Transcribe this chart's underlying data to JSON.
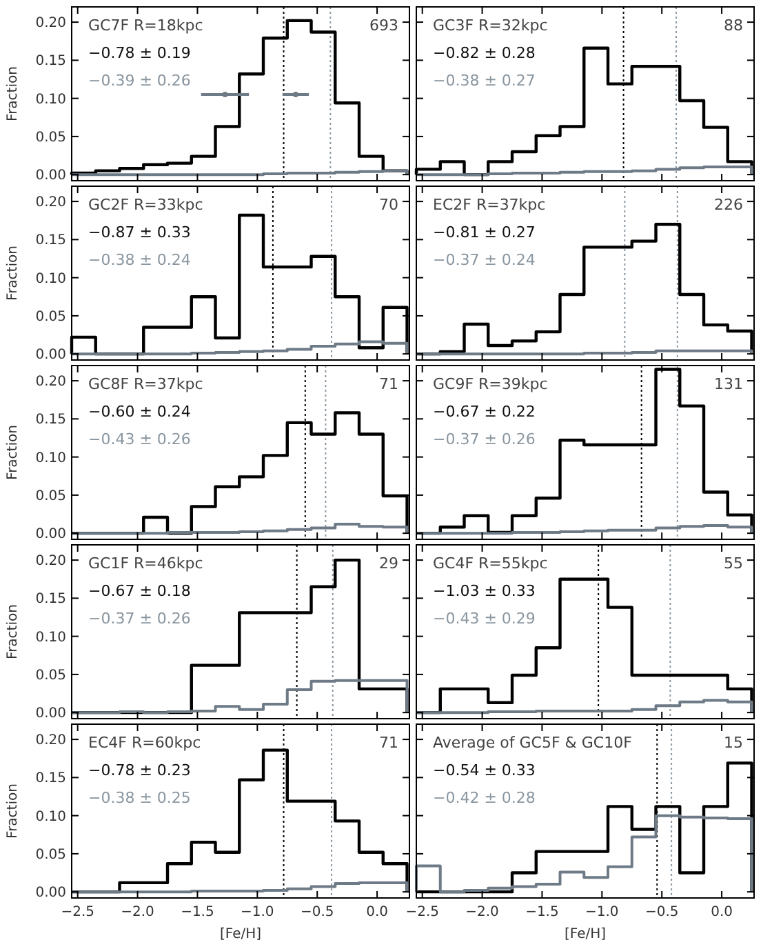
{
  "chart_data": [
    {
      "type": "histogram",
      "ylabel": "Fraction",
      "tick_labels": "y",
      "annotations": [
        "GC7F   R=18kpc",
        "693",
        "−0.78 ± 0.19",
        "−0.39 ± 0.26"
      ],
      "bins": [
        -2.55,
        -2.35,
        -2.15,
        -1.95,
        -1.75,
        -1.55,
        -1.35,
        -1.15,
        -0.95,
        -0.75,
        -0.55,
        -0.35,
        -0.15,
        0.05,
        0.25
      ],
      "xlim": [
        -2.55,
        0.27
      ],
      "ylim": [
        -0.008,
        0.22
      ],
      "xticks": [
        {
          "value": -2.5,
          "label": null
        },
        {
          "value": -2,
          "label": null
        },
        {
          "value": -1.5,
          "label": null
        },
        {
          "value": -1,
          "label": null
        },
        {
          "value": -0.5,
          "label": null
        },
        {
          "value": 0,
          "label": null
        }
      ],
      "yticks": [
        {
          "value": 0,
          "label": "0.00"
        },
        {
          "value": 0.05,
          "label": "0.05"
        },
        {
          "value": 0.1,
          "label": "0.10"
        },
        {
          "value": 0.15,
          "label": "0.15"
        },
        {
          "value": 0.2,
          "label": "0.20"
        }
      ],
      "ref_lines": [
        {
          "axis": "x",
          "value": -0.78,
          "color": "#000000",
          "line_style": "dotted"
        },
        {
          "axis": "x",
          "value": -0.39,
          "color": "#8a96a0",
          "line_style": "dotted"
        }
      ],
      "series": [
        {
          "color": "#000000",
          "values": [
            0.002,
            0.005,
            0.008,
            0.013,
            0.015,
            0.024,
            0.063,
            0.132,
            0.179,
            0.202,
            0.187,
            0.094,
            0.024,
            0.005
          ]
        },
        {
          "color": "#6e7b87",
          "values": [
            0,
            0,
            0,
            0,
            0,
            0,
            0,
            0,
            0.001,
            0.002,
            0.002,
            0.003,
            0.004,
            0.005
          ]
        },
        {
          "type": "scatter",
          "color": "#6e7b87",
          "marker": "circle",
          "x": [
            -1.27,
            -0.68
          ],
          "values": [
            0.105,
            0.105
          ],
          "xerrors": [
            0.2,
            0.11
          ]
        }
      ]
    },
    {
      "type": "histogram",
      "tick_labels": false,
      "annotations": [
        "GC3F   R=32kpc",
        "88",
        "−0.82 ± 0.28",
        "−0.38 ± 0.27"
      ],
      "bins": [
        -2.55,
        -2.35,
        -2.15,
        -1.95,
        -1.75,
        -1.55,
        -1.35,
        -1.15,
        -0.95,
        -0.75,
        -0.55,
        -0.35,
        -0.15,
        0.05,
        0.25
      ],
      "xlim": [
        -2.55,
        0.27
      ],
      "ylim": [
        -0.008,
        0.22
      ],
      "xticks": [
        {
          "value": -2.5,
          "label": null
        },
        {
          "value": -2,
          "label": null
        },
        {
          "value": -1.5,
          "label": null
        },
        {
          "value": -1,
          "label": null
        },
        {
          "value": -0.5,
          "label": null
        },
        {
          "value": 0,
          "label": null
        }
      ],
      "yticks": [
        {
          "value": 0,
          "label": null
        },
        {
          "value": 0.05,
          "label": null
        },
        {
          "value": 0.1,
          "label": null
        },
        {
          "value": 0.15,
          "label": null
        },
        {
          "value": 0.2,
          "label": null
        }
      ],
      "ref_lines": [
        {
          "axis": "x",
          "value": -0.82,
          "color": "#000000",
          "line_style": "dotted"
        },
        {
          "axis": "x",
          "value": -0.38,
          "color": "#8a96a0",
          "line_style": "dotted"
        }
      ],
      "series": [
        {
          "color": "#000000",
          "values": [
            0.007,
            0.017,
            0,
            0.017,
            0.03,
            0.051,
            0.063,
            0.166,
            0.119,
            0.142,
            0.142,
            0.097,
            0.062,
            0.017
          ]
        },
        {
          "color": "#6e7b87",
          "values": [
            0,
            0,
            0,
            0.001,
            0.002,
            0.002,
            0.003,
            0.004,
            0.004,
            0.005,
            0.007,
            0.009,
            0.01,
            0.01
          ]
        }
      ]
    },
    {
      "type": "histogram",
      "ylabel": "Fraction",
      "tick_labels": "y",
      "annotations": [
        "GC2F   R=33kpc",
        "70",
        "−0.87 ± 0.33",
        "−0.38 ± 0.24"
      ],
      "bins": [
        -2.55,
        -2.35,
        -2.15,
        -1.95,
        -1.75,
        -1.55,
        -1.35,
        -1.15,
        -0.95,
        -0.75,
        -0.55,
        -0.35,
        -0.15,
        0.05,
        0.25
      ],
      "xlim": [
        -2.55,
        0.27
      ],
      "ylim": [
        -0.008,
        0.22
      ],
      "xticks": [
        {
          "value": -2.5,
          "label": null
        },
        {
          "value": -2,
          "label": null
        },
        {
          "value": -1.5,
          "label": null
        },
        {
          "value": -1,
          "label": null
        },
        {
          "value": -0.5,
          "label": null
        },
        {
          "value": 0,
          "label": null
        }
      ],
      "yticks": [
        {
          "value": 0,
          "label": "0.00"
        },
        {
          "value": 0.05,
          "label": "0.05"
        },
        {
          "value": 0.1,
          "label": "0.10"
        },
        {
          "value": 0.15,
          "label": "0.15"
        },
        {
          "value": 0.2,
          "label": "0.20"
        }
      ],
      "ref_lines": [
        {
          "axis": "x",
          "value": -0.87,
          "color": "#000000",
          "line_style": "dotted"
        },
        {
          "axis": "x",
          "value": -0.38,
          "color": "#8a96a0",
          "line_style": "dotted"
        }
      ],
      "series": [
        {
          "color": "#000000",
          "values": [
            0.022,
            0,
            0,
            0.035,
            0.035,
            0.075,
            0.021,
            0.182,
            0.114,
            0.114,
            0.128,
            0.075,
            0.008,
            0.061
          ]
        },
        {
          "color": "#6e7b87",
          "values": [
            0,
            0,
            0,
            0,
            0,
            0.001,
            0.002,
            0.003,
            0.004,
            0.006,
            0.01,
            0.013,
            0.016,
            0.014
          ]
        }
      ]
    },
    {
      "type": "histogram",
      "tick_labels": false,
      "annotations": [
        "EC2F   R=37kpc",
        "226",
        "−0.81 ± 0.27",
        "−0.37 ± 0.24"
      ],
      "bins": [
        -2.55,
        -2.35,
        -2.15,
        -1.95,
        -1.75,
        -1.55,
        -1.35,
        -1.15,
        -0.95,
        -0.75,
        -0.55,
        -0.35,
        -0.15,
        0.05,
        0.25
      ],
      "xlim": [
        -2.55,
        0.27
      ],
      "ylim": [
        -0.008,
        0.22
      ],
      "xticks": [
        {
          "value": -2.5,
          "label": null
        },
        {
          "value": -2,
          "label": null
        },
        {
          "value": -1.5,
          "label": null
        },
        {
          "value": -1,
          "label": null
        },
        {
          "value": -0.5,
          "label": null
        },
        {
          "value": 0,
          "label": null
        }
      ],
      "yticks": [
        {
          "value": 0,
          "label": null
        },
        {
          "value": 0.05,
          "label": null
        },
        {
          "value": 0.1,
          "label": null
        },
        {
          "value": 0.15,
          "label": null
        },
        {
          "value": 0.2,
          "label": null
        }
      ],
      "ref_lines": [
        {
          "axis": "x",
          "value": -0.81,
          "color": "#8a96a0",
          "line_style": "dotted"
        },
        {
          "axis": "x",
          "value": -0.37,
          "color": "#8a96a0",
          "line_style": "dotted"
        }
      ],
      "series": [
        {
          "color": "#000000",
          "values": [
            0,
            0.003,
            0.039,
            0.011,
            0.017,
            0.029,
            0.078,
            0.14,
            0.14,
            0.148,
            0.17,
            0.078,
            0.038,
            0.03
          ]
        },
        {
          "color": "#6e7b87",
          "values": [
            0,
            0,
            0,
            0,
            0,
            0,
            0,
            0.001,
            0.001,
            0.002,
            0.004,
            0.004,
            0.004,
            0.004
          ]
        }
      ]
    },
    {
      "type": "histogram",
      "ylabel": "Fraction",
      "tick_labels": "y",
      "annotations": [
        "GC8F   R=37kpc",
        "71",
        "−0.60 ± 0.24",
        "−0.43 ± 0.26"
      ],
      "bins": [
        -2.55,
        -2.35,
        -2.15,
        -1.95,
        -1.75,
        -1.55,
        -1.35,
        -1.15,
        -0.95,
        -0.75,
        -0.55,
        -0.35,
        -0.15,
        0.05,
        0.25
      ],
      "xlim": [
        -2.55,
        0.27
      ],
      "ylim": [
        -0.008,
        0.22
      ],
      "xticks": [
        {
          "value": -2.5,
          "label": null
        },
        {
          "value": -2,
          "label": null
        },
        {
          "value": -1.5,
          "label": null
        },
        {
          "value": -1,
          "label": null
        },
        {
          "value": -0.5,
          "label": null
        },
        {
          "value": 0,
          "label": null
        }
      ],
      "yticks": [
        {
          "value": 0,
          "label": "0.00"
        },
        {
          "value": 0.05,
          "label": "0.05"
        },
        {
          "value": 0.1,
          "label": "0.10"
        },
        {
          "value": 0.15,
          "label": "0.15"
        },
        {
          "value": 0.2,
          "label": "0.20"
        }
      ],
      "ref_lines": [
        {
          "axis": "x",
          "value": -0.6,
          "color": "#000000",
          "line_style": "dotted"
        },
        {
          "axis": "x",
          "value": -0.43,
          "color": "#8a96a0",
          "line_style": "dotted"
        }
      ],
      "series": [
        {
          "color": "#000000",
          "values": [
            0,
            0,
            0,
            0.021,
            0,
            0.035,
            0.061,
            0.074,
            0.102,
            0.145,
            0.13,
            0.158,
            0.13,
            0.049
          ]
        },
        {
          "color": "#6e7b87",
          "values": [
            0,
            0,
            0,
            0,
            0.001,
            0.001,
            0.001,
            0.002,
            0.003,
            0.005,
            0.007,
            0.012,
            0.009,
            0.008
          ]
        }
      ]
    },
    {
      "type": "histogram",
      "tick_labels": false,
      "annotations": [
        "GC9F   R=39kpc",
        "131",
        "−0.67 ± 0.22",
        "−0.37 ± 0.26"
      ],
      "bins": [
        -2.55,
        -2.35,
        -2.15,
        -1.95,
        -1.75,
        -1.55,
        -1.35,
        -1.15,
        -0.95,
        -0.75,
        -0.55,
        -0.35,
        -0.15,
        0.05,
        0.25
      ],
      "xlim": [
        -2.55,
        0.27
      ],
      "ylim": [
        -0.008,
        0.22
      ],
      "xticks": [
        {
          "value": -2.5,
          "label": null
        },
        {
          "value": -2,
          "label": null
        },
        {
          "value": -1.5,
          "label": null
        },
        {
          "value": -1,
          "label": null
        },
        {
          "value": -0.5,
          "label": null
        },
        {
          "value": 0,
          "label": null
        }
      ],
      "yticks": [
        {
          "value": 0,
          "label": null
        },
        {
          "value": 0.05,
          "label": null
        },
        {
          "value": 0.1,
          "label": null
        },
        {
          "value": 0.15,
          "label": null
        },
        {
          "value": 0.2,
          "label": null
        }
      ],
      "ref_lines": [
        {
          "axis": "x",
          "value": -0.67,
          "color": "#000000",
          "line_style": "dotted"
        },
        {
          "axis": "x",
          "value": -0.37,
          "color": "#8a96a0",
          "line_style": "dotted"
        }
      ],
      "series": [
        {
          "color": "#000000",
          "values": [
            0,
            0.008,
            0.023,
            0.001,
            0.023,
            0.046,
            0.122,
            0.116,
            0.116,
            0.116,
            0.215,
            0.167,
            0.054,
            0.024
          ]
        },
        {
          "color": "#6e7b87",
          "values": [
            0,
            0,
            0,
            0,
            0.001,
            0.001,
            0.002,
            0.003,
            0.004,
            0.004,
            0.007,
            0.009,
            0.01,
            0.008
          ]
        }
      ]
    },
    {
      "type": "histogram",
      "ylabel": "Fraction",
      "tick_labels": "y",
      "annotations": [
        "GC1F   R=46kpc",
        "29",
        "−0.67 ± 0.18",
        "−0.37 ± 0.26"
      ],
      "bins": [
        -2.55,
        -2.35,
        -2.15,
        -1.95,
        -1.75,
        -1.55,
        -1.35,
        -1.15,
        -0.95,
        -0.75,
        -0.55,
        -0.35,
        -0.15,
        0.05,
        0.25
      ],
      "xlim": [
        -2.55,
        0.27
      ],
      "ylim": [
        -0.008,
        0.22
      ],
      "xticks": [
        {
          "value": -2.5,
          "label": null
        },
        {
          "value": -2,
          "label": null
        },
        {
          "value": -1.5,
          "label": null
        },
        {
          "value": -1,
          "label": null
        },
        {
          "value": -0.5,
          "label": null
        },
        {
          "value": 0,
          "label": null
        }
      ],
      "yticks": [
        {
          "value": 0,
          "label": "0.00"
        },
        {
          "value": 0.05,
          "label": "0.05"
        },
        {
          "value": 0.1,
          "label": "0.10"
        },
        {
          "value": 0.15,
          "label": "0.15"
        },
        {
          "value": 0.2,
          "label": "0.20"
        }
      ],
      "ref_lines": [
        {
          "axis": "x",
          "value": -0.67,
          "color": "#000000",
          "line_style": "dotted"
        },
        {
          "axis": "x",
          "value": -0.37,
          "color": "#8a96a0",
          "line_style": "dotted"
        }
      ],
      "series": [
        {
          "color": "#000000",
          "values": [
            0,
            0,
            0,
            0,
            0,
            0.062,
            0.062,
            0.131,
            0.131,
            0.131,
            0.165,
            0.2,
            0.031,
            0.031
          ]
        },
        {
          "color": "#6e7b87",
          "values": [
            0,
            0,
            0.001,
            0,
            0.001,
            0.002,
            0.008,
            0.004,
            0.011,
            0.03,
            0.041,
            0.042,
            0.042,
            0.042
          ]
        }
      ]
    },
    {
      "type": "histogram",
      "tick_labels": false,
      "annotations": [
        "GC4F   R=55kpc",
        "55",
        "−1.03 ± 0.33",
        "−0.43 ± 0.29"
      ],
      "bins": [
        -2.55,
        -2.35,
        -2.15,
        -1.95,
        -1.75,
        -1.55,
        -1.35,
        -1.15,
        -0.95,
        -0.75,
        -0.55,
        -0.35,
        -0.15,
        0.05,
        0.25
      ],
      "xlim": [
        -2.55,
        0.27
      ],
      "ylim": [
        -0.008,
        0.22
      ],
      "xticks": [
        {
          "value": -2.5,
          "label": null
        },
        {
          "value": -2,
          "label": null
        },
        {
          "value": -1.5,
          "label": null
        },
        {
          "value": -1,
          "label": null
        },
        {
          "value": -0.5,
          "label": null
        },
        {
          "value": 0,
          "label": null
        }
      ],
      "yticks": [
        {
          "value": 0,
          "label": null
        },
        {
          "value": 0.05,
          "label": null
        },
        {
          "value": 0.1,
          "label": null
        },
        {
          "value": 0.15,
          "label": null
        },
        {
          "value": 0.2,
          "label": null
        }
      ],
      "ref_lines": [
        {
          "axis": "x",
          "value": -1.03,
          "color": "#000000",
          "line_style": "dotted"
        },
        {
          "axis": "x",
          "value": -0.43,
          "color": "#8a96a0",
          "line_style": "dotted"
        }
      ],
      "series": [
        {
          "color": "#000000",
          "values": [
            0,
            0.031,
            0.031,
            0.013,
            0.049,
            0.085,
            0.175,
            0.175,
            0.138,
            0.049,
            0.049,
            0.049,
            0.049,
            0.031
          ]
        },
        {
          "color": "#6e7b87",
          "values": [
            0,
            0,
            0,
            0.001,
            0.001,
            0.002,
            0.002,
            0.002,
            0.002,
            0.004,
            0.009,
            0.014,
            0.016,
            0.014
          ]
        }
      ]
    },
    {
      "type": "histogram",
      "ylabel": "Fraction",
      "xlabel": "[Fe/H]",
      "annotations": [
        "EC4F   R=60kpc",
        "71",
        "−0.78 ± 0.23",
        "−0.38 ± 0.25"
      ],
      "bins": [
        -2.55,
        -2.35,
        -2.15,
        -1.95,
        -1.75,
        -1.55,
        -1.35,
        -1.15,
        -0.95,
        -0.75,
        -0.55,
        -0.35,
        -0.15,
        0.05,
        0.25
      ],
      "xlim": [
        -2.55,
        0.27
      ],
      "ylim": [
        -0.008,
        0.22
      ],
      "xticks": [
        {
          "value": -2.5,
          "label": "−2.5"
        },
        {
          "value": -2,
          "label": "−2.0"
        },
        {
          "value": -1.5,
          "label": "−1.5"
        },
        {
          "value": -1,
          "label": "−1.0"
        },
        {
          "value": -0.5,
          "label": "−0.5"
        },
        {
          "value": 0,
          "label": "0.0"
        }
      ],
      "yticks": [
        {
          "value": 0,
          "label": "0.00"
        },
        {
          "value": 0.05,
          "label": "0.05"
        },
        {
          "value": 0.1,
          "label": "0.10"
        },
        {
          "value": 0.15,
          "label": "0.15"
        },
        {
          "value": 0.2,
          "label": "0.20"
        }
      ],
      "ref_lines": [
        {
          "axis": "x",
          "value": -0.78,
          "color": "#000000",
          "line_style": "dotted"
        },
        {
          "axis": "x",
          "value": -0.38,
          "color": "#8a96a0",
          "line_style": "dotted"
        }
      ],
      "series": [
        {
          "color": "#000000",
          "values": [
            0,
            0,
            0.012,
            0.012,
            0.037,
            0.065,
            0.052,
            0.147,
            0.186,
            0.119,
            0.119,
            0.093,
            0.052,
            0.037
          ]
        },
        {
          "color": "#6e7b87",
          "values": [
            0,
            0,
            0,
            0,
            0,
            0.001,
            0.001,
            0.001,
            0.002,
            0.004,
            0.007,
            0.011,
            0.012,
            0.012
          ]
        }
      ]
    },
    {
      "type": "histogram",
      "xlabel": "[Fe/H]",
      "tick_labels": "x",
      "annotations": [
        "Average of GC5F & GC10F",
        "15",
        "−0.54 ± 0.33",
        "−0.42 ± 0.28"
      ],
      "bins": [
        -2.55,
        -2.35,
        -2.15,
        -1.95,
        -1.75,
        -1.55,
        -1.35,
        -1.15,
        -0.95,
        -0.75,
        -0.55,
        -0.35,
        -0.15,
        0.05,
        0.25
      ],
      "xlim": [
        -2.55,
        0.27
      ],
      "ylim": [
        -0.008,
        0.22
      ],
      "xticks": [
        {
          "value": -2.5,
          "label": "−2.5"
        },
        {
          "value": -2,
          "label": "−2.0"
        },
        {
          "value": -1.5,
          "label": "−1.5"
        },
        {
          "value": -1,
          "label": "−1.0"
        },
        {
          "value": -0.5,
          "label": "−0.5"
        },
        {
          "value": 0,
          "label": "0.0"
        }
      ],
      "yticks": [
        {
          "value": 0,
          "label": null
        },
        {
          "value": 0.05,
          "label": null
        },
        {
          "value": 0.1,
          "label": null
        },
        {
          "value": 0.15,
          "label": null
        },
        {
          "value": 0.2,
          "label": null
        }
      ],
      "ref_lines": [
        {
          "axis": "x",
          "value": -0.54,
          "color": "#000000",
          "line_style": "dotted"
        },
        {
          "axis": "x",
          "value": -0.42,
          "color": "#8a96a0",
          "line_style": "dotted"
        }
      ],
      "series": [
        {
          "color": "#000000",
          "values": [
            0,
            0,
            0,
            0,
            0.025,
            0.053,
            0.053,
            0.053,
            0.112,
            0.082,
            0.112,
            0.025,
            0.112,
            0.169
          ]
        },
        {
          "color": "#6e7b87",
          "values": [
            0.034,
            0,
            0.002,
            0.005,
            0.007,
            0.01,
            0.026,
            0.019,
            0.033,
            0.072,
            0.1,
            0.098,
            0.097,
            0.096
          ]
        }
      ]
    }
  ]
}
